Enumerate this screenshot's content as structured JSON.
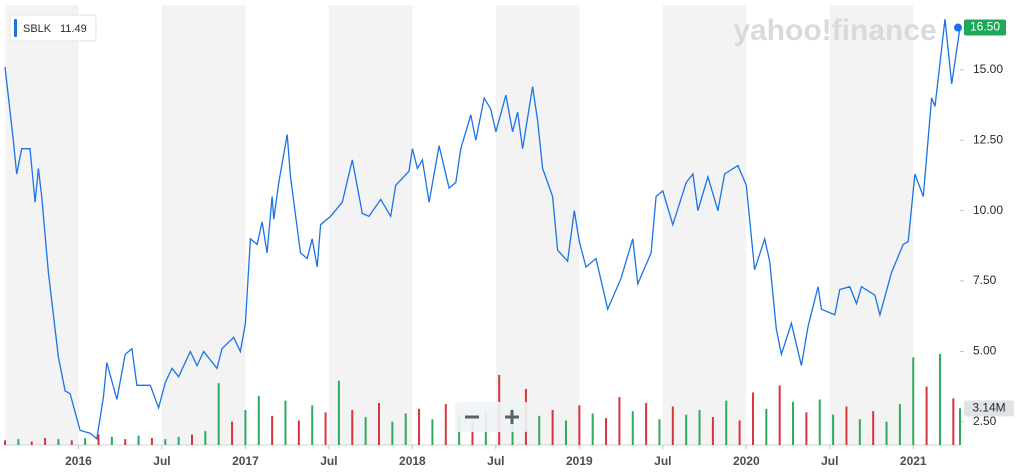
{
  "chart_data": {
    "type": "line",
    "watermark": "yahoo!finance",
    "legend": {
      "symbol": "SBLK",
      "value": 11.49
    },
    "current_price": {
      "value": 16.5,
      "label": "16.50"
    },
    "xlim": [
      2015.56,
      2021.28
    ],
    "xticks": [
      {
        "value": 2016,
        "label": "2016"
      },
      {
        "value": 2016.5,
        "label": "Jul"
      },
      {
        "value": 2017,
        "label": "2017"
      },
      {
        "value": 2017.5,
        "label": "Jul"
      },
      {
        "value": 2018,
        "label": "2018"
      },
      {
        "value": 2018.5,
        "label": "Jul"
      },
      {
        "value": 2019,
        "label": "2019"
      },
      {
        "value": 2019.5,
        "label": "Jul"
      },
      {
        "value": 2020,
        "label": "2020"
      },
      {
        "value": 2020.5,
        "label": "Jul"
      },
      {
        "value": 2021,
        "label": "2021"
      }
    ],
    "ylim": [
      1.68,
      17.3
    ],
    "yticks": [
      {
        "value": 2.5,
        "label": "2.50"
      },
      {
        "value": 5,
        "label": "5.00"
      },
      {
        "value": 7.5,
        "label": "7.50"
      },
      {
        "value": 10,
        "label": "10.00"
      },
      {
        "value": 12.5,
        "label": "12.50"
      },
      {
        "value": 15,
        "label": "15.00"
      }
    ],
    "series": [
      {
        "name": "SBLK",
        "color": "#1a73e8",
        "x": [
          2015.56,
          2015.61,
          2015.63,
          2015.66,
          2015.71,
          2015.74,
          2015.76,
          2015.78,
          2015.82,
          2015.88,
          2015.92,
          2015.95,
          2016.01,
          2016.07,
          2016.11,
          2016.15,
          2016.17,
          2016.23,
          2016.28,
          2016.32,
          2016.35,
          2016.43,
          2016.48,
          2016.52,
          2016.56,
          2016.6,
          2016.67,
          2016.71,
          2016.75,
          2016.83,
          2016.86,
          2016.93,
          2016.97,
          2017.0,
          2017.03,
          2017.07,
          2017.1,
          2017.13,
          2017.16,
          2017.17,
          2017.2,
          2017.25,
          2017.27,
          2017.33,
          2017.37,
          2017.4,
          2017.43,
          2017.45,
          2017.51,
          2017.58,
          2017.64,
          2017.7,
          2017.74,
          2017.81,
          2017.87,
          2017.9,
          2017.98,
          2018.0,
          2018.03,
          2018.06,
          2018.1,
          2018.16,
          2018.22,
          2018.26,
          2018.29,
          2018.35,
          2018.38,
          2018.43,
          2018.47,
          2018.5,
          2018.56,
          2018.6,
          2018.63,
          2018.66,
          2018.72,
          2018.75,
          2018.78,
          2018.84,
          2018.87,
          2018.93,
          2018.97,
          2019.0,
          2019.04,
          2019.1,
          2019.17,
          2019.25,
          2019.32,
          2019.35,
          2019.43,
          2019.46,
          2019.5,
          2019.56,
          2019.64,
          2019.68,
          2019.71,
          2019.77,
          2019.83,
          2019.87,
          2019.95,
          2020.0,
          2020.05,
          2020.11,
          2020.14,
          2020.18,
          2020.21,
          2020.27,
          2020.33,
          2020.37,
          2020.43,
          2020.45,
          2020.53,
          2020.56,
          2020.62,
          2020.66,
          2020.69,
          2020.77,
          2020.8,
          2020.87,
          2020.94,
          2020.97,
          2021.01,
          2021.06,
          2021.11,
          2021.13,
          2021.19,
          2021.23,
          2021.28
        ],
        "values": [
          15.1,
          12.5,
          11.3,
          12.2,
          12.2,
          10.3,
          11.5,
          10.5,
          7.8,
          4.8,
          3.6,
          3.5,
          2.2,
          2.1,
          1.9,
          3.4,
          4.6,
          3.3,
          4.9,
          5.1,
          3.8,
          3.8,
          3.0,
          3.9,
          4.4,
          4.1,
          5.0,
          4.5,
          5.0,
          4.4,
          5.1,
          5.5,
          5.0,
          6.0,
          9.0,
          8.8,
          9.6,
          8.5,
          10.5,
          9.7,
          11.0,
          12.7,
          11.2,
          8.5,
          8.3,
          9.0,
          8.0,
          9.5,
          9.8,
          10.3,
          11.8,
          9.9,
          9.8,
          10.4,
          9.8,
          10.9,
          11.4,
          12.2,
          11.5,
          11.8,
          10.3,
          12.3,
          10.8,
          11.0,
          12.2,
          13.4,
          12.5,
          14.0,
          13.6,
          12.8,
          14.1,
          12.8,
          13.5,
          12.2,
          14.4,
          13.2,
          11.5,
          10.5,
          8.6,
          8.2,
          10.0,
          8.9,
          8.0,
          8.3,
          6.5,
          7.6,
          9.0,
          7.4,
          8.5,
          10.5,
          10.7,
          9.5,
          11.0,
          11.3,
          10.0,
          11.2,
          10.0,
          11.3,
          11.6,
          10.9,
          7.9,
          9.0,
          8.2,
          5.8,
          4.9,
          6.0,
          4.5,
          5.9,
          7.3,
          6.5,
          6.3,
          7.2,
          7.3,
          6.7,
          7.3,
          7.0,
          6.3,
          7.8,
          8.8,
          8.9,
          11.3,
          10.5,
          14.0,
          13.7,
          16.8,
          14.5,
          16.5
        ]
      }
    ],
    "volume": {
      "vlim": [
        0,
        37.7
      ],
      "up_color": "#2daa5f",
      "down_color": "#d9343b",
      "current": {
        "value": 3.14,
        "label": "3.14M"
      },
      "x": [
        2015.56,
        2015.64,
        2015.72,
        2015.8,
        2015.88,
        2015.96,
        2016.04,
        2016.12,
        2016.2,
        2016.28,
        2016.36,
        2016.44,
        2016.52,
        2016.6,
        2016.68,
        2016.76,
        2016.84,
        2016.92,
        2017.0,
        2017.08,
        2017.16,
        2017.24,
        2017.32,
        2017.4,
        2017.48,
        2017.56,
        2017.64,
        2017.72,
        2017.8,
        2017.88,
        2017.96,
        2018.04,
        2018.12,
        2018.2,
        2018.28,
        2018.36,
        2018.44,
        2018.52,
        2018.6,
        2018.68,
        2018.76,
        2018.84,
        2018.92,
        2019.0,
        2019.08,
        2019.16,
        2019.24,
        2019.32,
        2019.4,
        2019.48,
        2019.56,
        2019.64,
        2019.72,
        2019.8,
        2019.88,
        2019.96,
        2020.04,
        2020.12,
        2020.2,
        2020.28,
        2020.36,
        2020.44,
        2020.52,
        2020.6,
        2020.68,
        2020.76,
        2020.84,
        2020.92,
        2021.0,
        2021.08,
        2021.16,
        2021.24,
        2021.28
      ],
      "values": [
        0.4,
        0.5,
        0.3,
        0.6,
        0.5,
        0.4,
        0.6,
        0.9,
        0.7,
        0.5,
        0.8,
        0.6,
        0.5,
        0.7,
        0.9,
        1.2,
        5.3,
        2.0,
        3.0,
        4.2,
        2.5,
        3.8,
        2.1,
        3.4,
        2.8,
        5.5,
        3.0,
        2.4,
        3.6,
        2.0,
        2.7,
        3.1,
        2.2,
        3.5,
        2.6,
        1.9,
        2.8,
        6.0,
        3.2,
        4.8,
        2.5,
        3.0,
        2.1,
        3.4,
        2.7,
        2.3,
        4.1,
        2.9,
        3.6,
        2.2,
        3.3,
        2.6,
        3.0,
        2.4,
        3.8,
        2.1,
        4.5,
        3.1,
        5.1,
        3.7,
        2.8,
        3.9,
        2.6,
        3.3,
        2.2,
        2.9,
        2.0,
        3.5,
        7.5,
        5.0,
        7.8,
        4.0,
        3.14
      ],
      "up": [
        false,
        true,
        false,
        false,
        true,
        false,
        true,
        false,
        true,
        false,
        true,
        false,
        true,
        true,
        false,
        true,
        true,
        false,
        true,
        true,
        false,
        true,
        false,
        true,
        false,
        true,
        false,
        true,
        false,
        true,
        true,
        false,
        true,
        false,
        true,
        false,
        true,
        false,
        true,
        false,
        true,
        false,
        true,
        false,
        true,
        false,
        false,
        true,
        false,
        true,
        false,
        true,
        true,
        false,
        true,
        false,
        false,
        true,
        false,
        true,
        false,
        true,
        true,
        false,
        true,
        false,
        true,
        true,
        true,
        false,
        true,
        false,
        true
      ]
    }
  }
}
